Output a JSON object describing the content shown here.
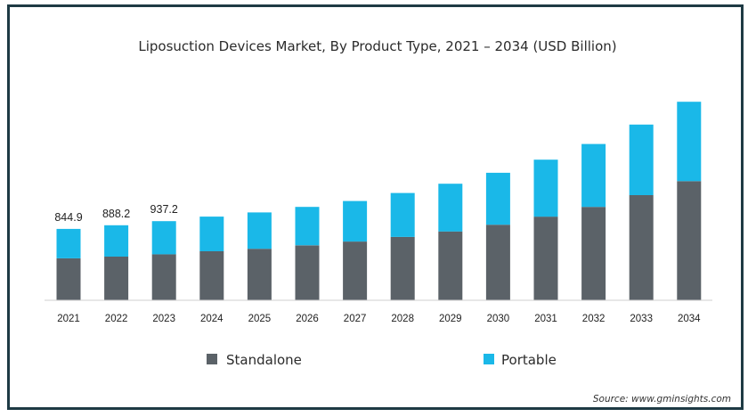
{
  "chart_data": {
    "type": "bar",
    "stacked": true,
    "title": "Liposuction Devices Market, By Product Type, 2021 – 2034 (USD Billion)",
    "xlabel": "",
    "ylabel": "",
    "categories": [
      "2021",
      "2022",
      "2023",
      "2024",
      "2025",
      "2026",
      "2027",
      "2028",
      "2029",
      "2030",
      "2031",
      "2032",
      "2033",
      "2034"
    ],
    "series": [
      {
        "name": "Standalone",
        "color": "#5b6268",
        "values": [
          497,
          517,
          545,
          580,
          610,
          650,
          695,
          750,
          815,
          895,
          990,
          1105,
          1245,
          1410
        ]
      },
      {
        "name": "Portable",
        "color": "#1ab8e8",
        "values": [
          347.9,
          371.2,
          392.2,
          410,
          430,
          455,
          480,
          520,
          565,
          615,
          675,
          745,
          835,
          940
        ]
      }
    ],
    "data_labels": {
      "2021": "844.9",
      "2022": "888.2",
      "2023": "937.2"
    },
    "ylim": [
      0,
      2500
    ],
    "grid": false,
    "legend": "bottom"
  },
  "source": "Source: www.gminsights.com"
}
